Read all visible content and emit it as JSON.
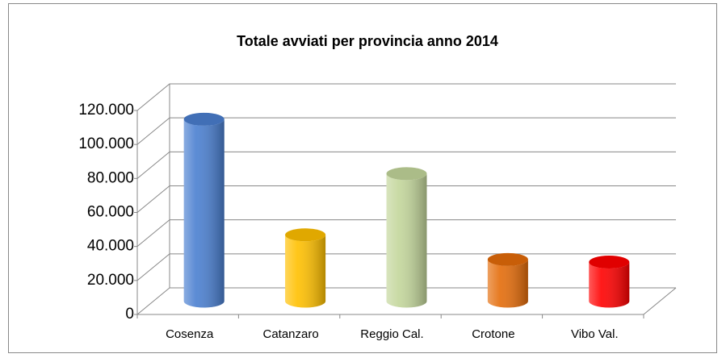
{
  "chart_data": {
    "type": "bar",
    "title": "Totale avviati per provincia anno 2014",
    "categories": [
      "Cosenza",
      "Catanzaro",
      "Reggio Cal.",
      "Crotone",
      "Vibo Val."
    ],
    "values": [
      107000,
      39000,
      75000,
      24500,
      23000
    ],
    "colors": [
      "#4a7fd0",
      "#ffc000",
      "#c3d69b",
      "#e46c0a",
      "#ff0000"
    ],
    "ylim": [
      0,
      120000
    ],
    "yticks": [
      0,
      {
        "value": 20000,
        "label": "20.000"
      },
      {
        "value": 40000,
        "label": "40.000"
      },
      {
        "value": 60000,
        "label": "60.000"
      },
      {
        "value": 80000,
        "label": "80.000"
      },
      {
        "value": 100000,
        "label": "100.000"
      },
      {
        "value": 120000,
        "label": "120.000"
      }
    ],
    "grid": true
  }
}
